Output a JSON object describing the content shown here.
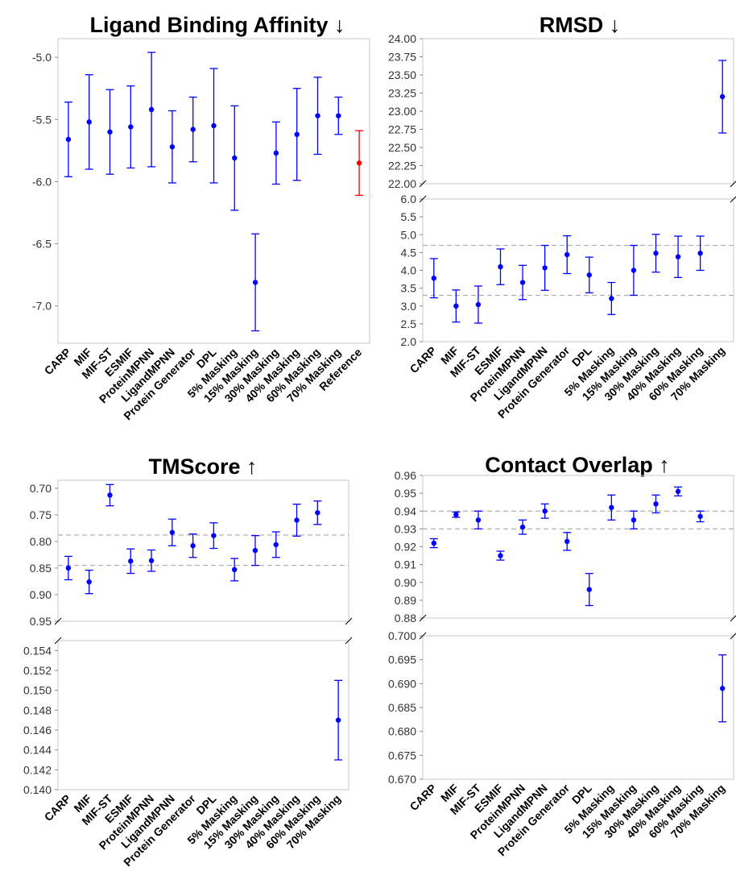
{
  "chart_data": [
    {
      "type": "errorbar",
      "title": "Ligand Binding Affinity ↓",
      "categories": [
        "CARP",
        "MIF",
        "MIF-ST",
        "ESMIF",
        "ProteinMPNN",
        "LigandMPNN",
        "Protein Generator",
        "DPL",
        "5% Masking",
        "15% Masking",
        "30% Masking",
        "40% Masking",
        "60% Masking",
        "70% Masking",
        "Reference"
      ],
      "values": [
        -5.66,
        -5.52,
        -5.6,
        -5.56,
        -5.42,
        -5.72,
        -5.58,
        -5.55,
        -5.81,
        -6.81,
        -5.77,
        -5.62,
        -5.47,
        -5.47,
        -5.85
      ],
      "errors": [
        0.3,
        0.38,
        0.34,
        0.33,
        0.46,
        0.29,
        0.26,
        0.46,
        0.42,
        0.39,
        0.25,
        0.37,
        0.31,
        0.15,
        0.26
      ],
      "point_colors": [
        "#0000ff",
        "#0000ff",
        "#0000ff",
        "#0000ff",
        "#0000ff",
        "#0000ff",
        "#0000ff",
        "#0000ff",
        "#0000ff",
        "#0000ff",
        "#0000ff",
        "#0000ff",
        "#0000ff",
        "#0000ff",
        "#ff0000"
      ],
      "ylim": [
        -7.3,
        -4.85
      ],
      "yticks": [
        "-5.0",
        "-5.5",
        "-6.0",
        "-6.5",
        "-7.0"
      ],
      "ytick_values": [
        -5.0,
        -5.5,
        -6.0,
        -6.5,
        -7.0
      ],
      "reference_lines": [],
      "grid": false
    },
    {
      "type": "errorbar",
      "title": "RMSD ↓",
      "categories": [
        "CARP",
        "MIF",
        "MIF-ST",
        "ESMIF",
        "ProteinMPNN",
        "LigandMPNN",
        "Protein Generator",
        "DPL",
        "5% Masking",
        "15% Masking",
        "30% Masking",
        "40% Masking",
        "60% Masking",
        "70% Masking"
      ],
      "values": [
        3.78,
        3.0,
        3.04,
        4.1,
        3.66,
        4.07,
        4.44,
        3.87,
        3.21,
        4.0,
        4.48,
        4.38,
        4.48,
        23.2
      ],
      "errors": [
        0.55,
        0.45,
        0.52,
        0.5,
        0.48,
        0.63,
        0.53,
        0.5,
        0.45,
        0.7,
        0.53,
        0.58,
        0.48,
        0.5
      ],
      "y_break": true,
      "upper_ylim": [
        22.0,
        24.0
      ],
      "upper_yticks": [
        "22.00",
        "22.25",
        "22.50",
        "22.75",
        "23.00",
        "23.25",
        "23.50",
        "23.75",
        "24.00"
      ],
      "upper_ytick_values": [
        22.0,
        22.25,
        22.5,
        22.75,
        23.0,
        23.25,
        23.5,
        23.75,
        24.0
      ],
      "lower_ylim": [
        2.0,
        6.0
      ],
      "lower_yticks": [
        "2.0",
        "2.5",
        "3.0",
        "3.5",
        "4.0",
        "4.5",
        "5.0",
        "5.5",
        "6.0"
      ],
      "lower_ytick_values": [
        2.0,
        2.5,
        3.0,
        3.5,
        4.0,
        4.5,
        5.0,
        5.5,
        6.0
      ],
      "reference_lines": [
        3.3,
        4.7
      ],
      "grid": false
    },
    {
      "type": "errorbar",
      "title": "TMScore ↑",
      "categories": [
        "CARP",
        "MIF",
        "MIF-ST",
        "ESMIF",
        "ProteinMPNN",
        "LigandMPNN",
        "Protein Generator",
        "DPL",
        "5% Masking",
        "15% Masking",
        "30% Masking",
        "40% Masking",
        "60% Masking",
        "70% Masking"
      ],
      "values": [
        0.85,
        0.876,
        0.713,
        0.837,
        0.836,
        0.783,
        0.808,
        0.789,
        0.853,
        0.817,
        0.806,
        0.76,
        0.746,
        0.147
      ],
      "errors": [
        0.022,
        0.022,
        0.02,
        0.023,
        0.02,
        0.025,
        0.022,
        0.024,
        0.021,
        0.028,
        0.024,
        0.03,
        0.022,
        0.004
      ],
      "y_break": true,
      "upper_ylim": [
        0.95,
        0.685
      ],
      "upper_inverted": true,
      "upper_yticks": [
        "0.70",
        "0.75",
        "0.80",
        "0.85",
        "0.90",
        "0.95"
      ],
      "upper_ytick_values": [
        0.7,
        0.75,
        0.8,
        0.85,
        0.9,
        0.95
      ],
      "lower_ylim": [
        0.14,
        0.155
      ],
      "lower_yticks": [
        "0.140",
        "0.142",
        "0.144",
        "0.146",
        "0.148",
        "0.150",
        "0.152",
        "0.154"
      ],
      "lower_ytick_values": [
        0.14,
        0.142,
        0.144,
        0.146,
        0.148,
        0.15,
        0.152,
        0.154
      ],
      "reference_lines": [
        0.788,
        0.845
      ],
      "grid": false
    },
    {
      "type": "errorbar",
      "title": "Contact Overlap ↑",
      "categories": [
        "CARP",
        "MIF",
        "MIF-ST",
        "ESMIF",
        "ProteinMPNN",
        "LigandMPNN",
        "Protein Generator",
        "DPL",
        "5% Masking",
        "15% Masking",
        "30% Masking",
        "40% Masking",
        "60% Masking",
        "70% Masking"
      ],
      "values": [
        0.922,
        0.938,
        0.935,
        0.915,
        0.931,
        0.94,
        0.923,
        0.896,
        0.942,
        0.935,
        0.944,
        0.951,
        0.937,
        0.689
      ],
      "errors": [
        0.0025,
        0.0015,
        0.005,
        0.0025,
        0.004,
        0.004,
        0.005,
        0.009,
        0.007,
        0.005,
        0.005,
        0.0025,
        0.003,
        0.007
      ],
      "y_break": true,
      "upper_ylim": [
        0.88,
        0.96
      ],
      "upper_yticks": [
        "0.88",
        "0.89",
        "0.90",
        "0.91",
        "0.92",
        "0.93",
        "0.94",
        "0.95",
        "0.96"
      ],
      "upper_ytick_values": [
        0.88,
        0.89,
        0.9,
        0.91,
        0.92,
        0.93,
        0.94,
        0.95,
        0.96
      ],
      "lower_ylim": [
        0.67,
        0.7
      ],
      "lower_yticks": [
        "0.670",
        "0.675",
        "0.680",
        "0.685",
        "0.690",
        "0.695",
        "0.700"
      ],
      "lower_ytick_values": [
        0.67,
        0.675,
        0.68,
        0.685,
        0.69,
        0.695,
        0.7
      ],
      "reference_lines": [
        0.93,
        0.94
      ],
      "grid": false
    }
  ],
  "colors": {
    "points": "#0000ff",
    "reference": "#ff0000",
    "ref_lines": "#b0b0b0"
  }
}
